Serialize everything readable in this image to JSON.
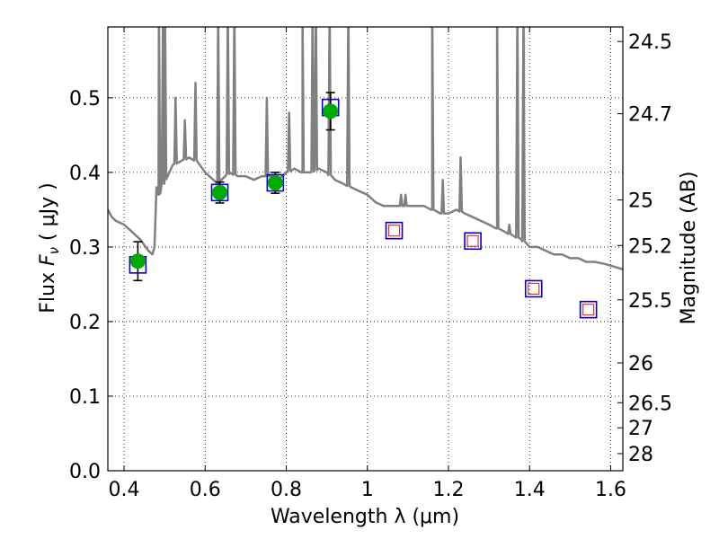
{
  "chart_data": {
    "type": "scatter",
    "xlabel": "Wavelength  λ (μm)",
    "ylabel": "Flux  F_ν ( μJy )",
    "ylabel_parts": {
      "prefix": "Flux  ",
      "symbol": "F",
      "subscript": "ν",
      "unit": " ( μJy )"
    },
    "y2label": "Magnitude (AB)",
    "xlim": [
      0.36,
      1.63
    ],
    "ylim": [
      0.0,
      0.595
    ],
    "grid": true,
    "grid_style": "dotted",
    "x_ticks": [
      0.4,
      0.6,
      0.8,
      1.0,
      1.2,
      1.4,
      1.6
    ],
    "x_tick_labels": [
      "0.4",
      "0.6",
      "0.8",
      "1",
      "1.2",
      "1.4",
      "1.6"
    ],
    "y_ticks": [
      0.0,
      0.1,
      0.2,
      0.3,
      0.4,
      0.5
    ],
    "y_tick_labels": [
      "0.0",
      "0.1",
      "0.2",
      "0.3",
      "0.4",
      "0.5"
    ],
    "y2_ticks": [
      24.5,
      24.7,
      25,
      25.2,
      25.5,
      26,
      26.5,
      27,
      28
    ],
    "y2_tick_labels": [
      "24.5",
      "24.7",
      "25",
      "25.2",
      "25.5",
      "26",
      "26.5",
      "27",
      "28"
    ],
    "colors": {
      "template": "#808080",
      "observed_fill": "#00aa00",
      "model_box": "#0000cc",
      "predicted_box": "#dd3333",
      "errorbar": "#000000"
    },
    "template_spectrum": {
      "x": [
        0.36,
        0.37,
        0.38,
        0.4,
        0.42,
        0.44,
        0.46,
        0.47,
        0.475,
        0.48,
        0.485,
        0.5,
        0.52,
        0.54,
        0.56,
        0.58,
        0.6,
        0.62,
        0.63,
        0.64,
        0.65,
        0.66,
        0.68,
        0.7,
        0.72,
        0.74,
        0.76,
        0.78,
        0.8,
        0.82,
        0.84,
        0.86,
        0.88,
        0.9,
        0.92,
        0.94,
        0.96,
        0.98,
        1.0,
        1.02,
        1.04,
        1.06,
        1.08,
        1.1,
        1.12,
        1.14,
        1.16,
        1.18,
        1.2,
        1.22,
        1.24,
        1.26,
        1.28,
        1.3,
        1.32,
        1.34,
        1.36,
        1.38,
        1.4,
        1.42,
        1.44,
        1.46,
        1.48,
        1.5,
        1.52,
        1.54,
        1.56,
        1.58,
        1.6,
        1.63
      ],
      "y": [
        0.35,
        0.34,
        0.335,
        0.33,
        0.32,
        0.31,
        0.295,
        0.29,
        0.3,
        0.38,
        0.37,
        0.39,
        0.41,
        0.415,
        0.42,
        0.415,
        0.4,
        0.39,
        0.385,
        0.39,
        0.395,
        0.4,
        0.395,
        0.395,
        0.39,
        0.395,
        0.395,
        0.39,
        0.4,
        0.405,
        0.4,
        0.4,
        0.405,
        0.4,
        0.39,
        0.385,
        0.38,
        0.375,
        0.37,
        0.36,
        0.355,
        0.355,
        0.355,
        0.355,
        0.355,
        0.355,
        0.35,
        0.345,
        0.345,
        0.35,
        0.345,
        0.34,
        0.335,
        0.33,
        0.325,
        0.32,
        0.315,
        0.31,
        0.3,
        0.3,
        0.295,
        0.29,
        0.29,
        0.285,
        0.285,
        0.28,
        0.28,
        0.278,
        0.275,
        0.27
      ]
    },
    "emission_lines": [
      {
        "x": 0.486,
        "peak": 0.62
      },
      {
        "x": 0.496,
        "peak": 0.62
      },
      {
        "x": 0.501,
        "peak": 0.62
      },
      {
        "x": 0.527,
        "peak": 0.5
      },
      {
        "x": 0.55,
        "peak": 0.47
      },
      {
        "x": 0.576,
        "peak": 0.52
      },
      {
        "x": 0.632,
        "peak": 0.62
      },
      {
        "x": 0.656,
        "peak": 0.62
      },
      {
        "x": 0.672,
        "peak": 0.62
      },
      {
        "x": 0.752,
        "peak": 0.5
      },
      {
        "x": 0.807,
        "peak": 0.48
      },
      {
        "x": 0.84,
        "peak": 0.62
      },
      {
        "x": 0.865,
        "peak": 0.62
      },
      {
        "x": 0.873,
        "peak": 0.62
      },
      {
        "x": 0.907,
        "peak": 0.62
      },
      {
        "x": 0.953,
        "peak": 0.62
      },
      {
        "x": 1.083,
        "peak": 0.37
      },
      {
        "x": 1.094,
        "peak": 0.37
      },
      {
        "x": 1.16,
        "peak": 0.62
      },
      {
        "x": 1.186,
        "peak": 0.39
      },
      {
        "x": 1.23,
        "peak": 0.42
      },
      {
        "x": 1.32,
        "peak": 0.62
      },
      {
        "x": 1.35,
        "peak": 0.33
      },
      {
        "x": 1.37,
        "peak": 0.62
      },
      {
        "x": 1.385,
        "peak": 0.62
      }
    ],
    "observed": {
      "x": [
        0.434,
        0.636,
        0.773,
        0.909
      ],
      "y": [
        0.281,
        0.373,
        0.386,
        0.482
      ],
      "yerr": [
        0.026,
        0.014,
        0.014,
        0.025
      ]
    },
    "model_photometry": {
      "x": [
        0.434,
        0.636,
        0.773,
        0.909
      ],
      "y": [
        0.276,
        0.373,
        0.386,
        0.487
      ]
    },
    "predicted": {
      "x": [
        1.066,
        1.26,
        1.41,
        1.545
      ],
      "y": [
        0.322,
        0.308,
        0.244,
        0.216
      ]
    }
  }
}
